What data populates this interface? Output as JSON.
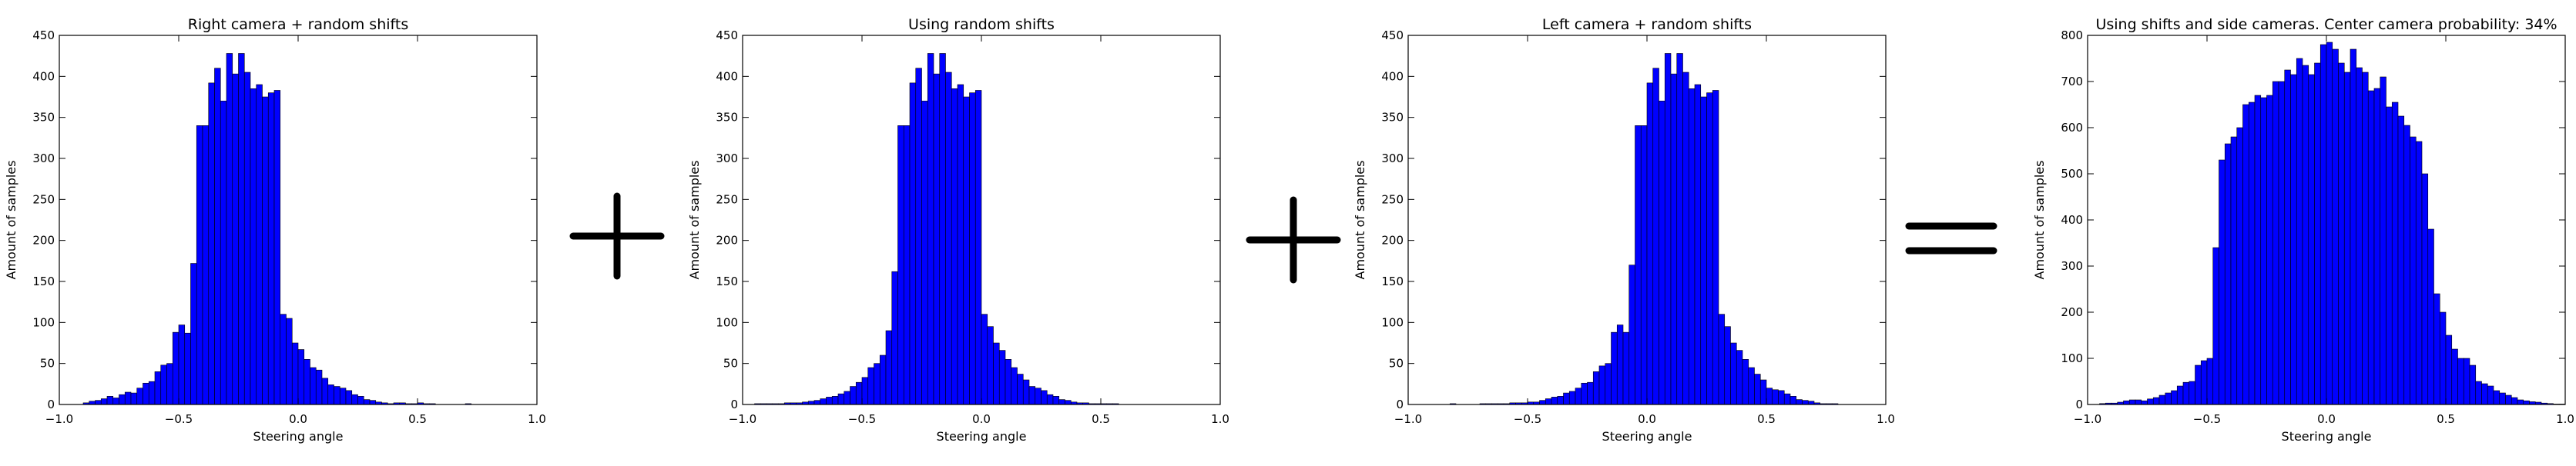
{
  "chart_data": [
    {
      "type": "bar",
      "title": "Right camera + random shifts",
      "xlabel": "Steering angle",
      "ylabel": "Amount of samples",
      "xlim": [
        -1.0,
        1.0
      ],
      "ylim": [
        0,
        450
      ],
      "xticks": [
        "−1.0",
        "−0.5",
        "0.0",
        "0.5",
        "1.0"
      ],
      "yticks": [
        "0",
        "50",
        "100",
        "150",
        "200",
        "250",
        "300",
        "350",
        "400",
        "450"
      ],
      "bar_color": "#0000ff",
      "bin_start": -1.0,
      "bin_width": 0.025,
      "values": [
        0,
        0,
        0,
        0,
        2,
        4,
        5,
        7,
        10,
        8,
        12,
        15,
        14,
        20,
        26,
        28,
        40,
        48,
        50,
        88,
        97,
        87,
        172,
        340,
        340,
        392,
        410,
        370,
        428,
        403,
        428,
        405,
        385,
        390,
        375,
        380,
        383,
        110,
        105,
        75,
        67,
        55,
        45,
        42,
        32,
        24,
        22,
        20,
        17,
        12,
        10,
        6,
        5,
        3,
        2,
        1,
        2,
        2,
        1,
        1,
        2,
        1,
        1,
        0,
        0,
        0,
        0,
        0,
        1,
        0,
        0,
        0,
        0,
        0,
        0,
        0,
        0,
        0,
        0,
        0
      ]
    },
    {
      "type": "bar",
      "title": "Using random shifts",
      "xlabel": "Steering angle",
      "ylabel": "Amount of samples",
      "xlim": [
        -1.0,
        1.0
      ],
      "ylim": [
        0,
        450
      ],
      "xticks": [
        "−1.0",
        "−0.5",
        "0.0",
        "0.5",
        "1.0"
      ],
      "yticks": [
        "0",
        "50",
        "100",
        "150",
        "200",
        "250",
        "300",
        "350",
        "400",
        "450"
      ],
      "bar_color": "#0000ff",
      "bin_start": -1.0,
      "bin_width": 0.025,
      "values": [
        0,
        0,
        1,
        1,
        1,
        1,
        1,
        2,
        2,
        2,
        3,
        4,
        5,
        7,
        9,
        10,
        13,
        16,
        22,
        27,
        33,
        45,
        50,
        60,
        90,
        162,
        340,
        340,
        392,
        410,
        370,
        428,
        403,
        428,
        405,
        385,
        390,
        375,
        380,
        383,
        110,
        95,
        75,
        66,
        55,
        45,
        37,
        30,
        22,
        20,
        17,
        12,
        10,
        6,
        5,
        3,
        2,
        2,
        1,
        1,
        1,
        1,
        1,
        0,
        0,
        0,
        0,
        0,
        0,
        0,
        0,
        0,
        0,
        0,
        0,
        0,
        0,
        0,
        0,
        0
      ]
    },
    {
      "type": "bar",
      "title": "Left camera + random shifts",
      "xlabel": "Steering angle",
      "ylabel": "Amount of samples",
      "xlim": [
        -1.0,
        1.0
      ],
      "ylim": [
        0,
        450
      ],
      "xticks": [
        "−1.0",
        "−0.5",
        "0.0",
        "0.5",
        "1.0"
      ],
      "yticks": [
        "0",
        "50",
        "100",
        "150",
        "200",
        "250",
        "300",
        "350",
        "400",
        "450"
      ],
      "bar_color": "#0000ff",
      "bin_start": -1.0,
      "bin_width": 0.025,
      "values": [
        0,
        0,
        0,
        0,
        0,
        0,
        0,
        1,
        0,
        0,
        0,
        0,
        1,
        1,
        1,
        1,
        1,
        2,
        2,
        2,
        3,
        3,
        5,
        7,
        9,
        10,
        14,
        16,
        20,
        26,
        27,
        40,
        47,
        50,
        88,
        97,
        88,
        170,
        340,
        340,
        392,
        410,
        370,
        428,
        403,
        428,
        405,
        385,
        390,
        375,
        380,
        383,
        110,
        95,
        75,
        66,
        55,
        45,
        37,
        30,
        20,
        18,
        17,
        13,
        10,
        6,
        5,
        4,
        2,
        1,
        1,
        1,
        0,
        0,
        0,
        0,
        0,
        0,
        0,
        0
      ]
    },
    {
      "type": "bar",
      "title": "Using shifts and side cameras. Center camera probability: 34%",
      "xlabel": "Steering angle",
      "ylabel": "Amount of samples",
      "xlim": [
        -1.0,
        1.0
      ],
      "ylim": [
        0,
        800
      ],
      "xticks": [
        "−1.0",
        "−0.5",
        "0.0",
        "0.5",
        "1.0"
      ],
      "yticks": [
        "0",
        "100",
        "200",
        "300",
        "400",
        "500",
        "600",
        "700",
        "800"
      ],
      "bar_color": "#0000ff",
      "bin_start": -1.0,
      "bin_width": 0.025,
      "values": [
        0,
        0,
        2,
        3,
        3,
        5,
        8,
        10,
        10,
        8,
        12,
        15,
        20,
        25,
        30,
        40,
        48,
        50,
        85,
        95,
        100,
        340,
        530,
        565,
        580,
        600,
        650,
        655,
        670,
        665,
        670,
        700,
        700,
        725,
        715,
        750,
        735,
        715,
        740,
        780,
        785,
        770,
        740,
        720,
        770,
        730,
        720,
        680,
        685,
        710,
        645,
        655,
        625,
        605,
        580,
        570,
        500,
        380,
        240,
        200,
        150,
        120,
        100,
        100,
        85,
        50,
        45,
        40,
        30,
        25,
        20,
        15,
        10,
        8,
        6,
        5,
        3,
        2,
        1,
        1
      ]
    }
  ],
  "operators": {
    "plus_1": "plus-sign",
    "plus_2": "plus-sign",
    "equals": "equals-sign"
  }
}
